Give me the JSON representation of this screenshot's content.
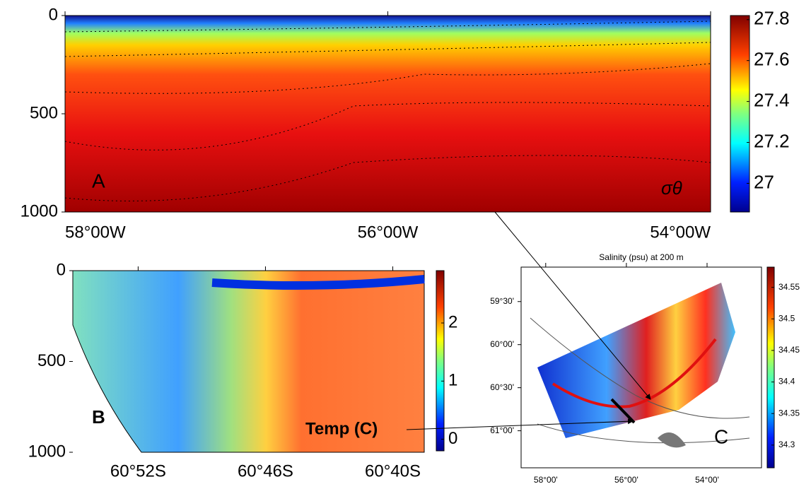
{
  "chart_data": [
    {
      "type": "heatmap",
      "annotations": [
        "A",
        "σθ"
      ],
      "ylim": [
        0,
        1000
      ],
      "yticks": [
        0,
        500,
        1000
      ],
      "yinverted": true,
      "xlim": [
        -58.0,
        -54.0
      ],
      "xticks": [
        {
          "value": -58,
          "label": "58°00W"
        },
        {
          "value": -56,
          "label": "56°00W"
        },
        {
          "value": -54,
          "label": "54°00W"
        }
      ],
      "colorbar": {
        "lim": [
          26.86,
          27.82
        ],
        "ticks": [
          27,
          27.2,
          27.4,
          27.6,
          27.8
        ]
      }
    },
    {
      "type": "heatmap",
      "annotations": [
        "B",
        "Temp (C)"
      ],
      "ylim": [
        0,
        1000
      ],
      "yticks": [
        0,
        500,
        1000
      ],
      "yinverted": true,
      "xlim": [
        -60.918,
        -60.642
      ],
      "xticks": [
        {
          "value": -60.8667,
          "label": "60°52S"
        },
        {
          "value": -60.7667,
          "label": "60°46S"
        },
        {
          "value": -60.6667,
          "label": "60°40S"
        }
      ],
      "colorbar": {
        "lim": [
          -0.2,
          2.9
        ],
        "ticks": [
          0,
          1,
          2
        ]
      }
    },
    {
      "type": "map",
      "title": "Salinity (psu) at 200 m",
      "annotations": [
        "C"
      ],
      "xlim": [
        -58.61,
        -52.65
      ],
      "xticks": [
        {
          "value": -58,
          "label": "58°00'"
        },
        {
          "value": -56,
          "label": "56°00'"
        },
        {
          "value": -54,
          "label": "54°00'"
        }
      ],
      "ylim": [
        -61.43,
        -59.1
      ],
      "yticks": [
        {
          "value": -59.5,
          "label": "59°30'"
        },
        {
          "value": -60,
          "label": "60°00'"
        },
        {
          "value": -60.5,
          "label": "60°30'"
        },
        {
          "value": -61,
          "label": "61°00'"
        }
      ],
      "colorbar": {
        "lim": [
          34.264,
          34.582
        ],
        "ticks": [
          34.3,
          34.35,
          34.4,
          34.45,
          34.5,
          34.55
        ]
      }
    }
  ]
}
